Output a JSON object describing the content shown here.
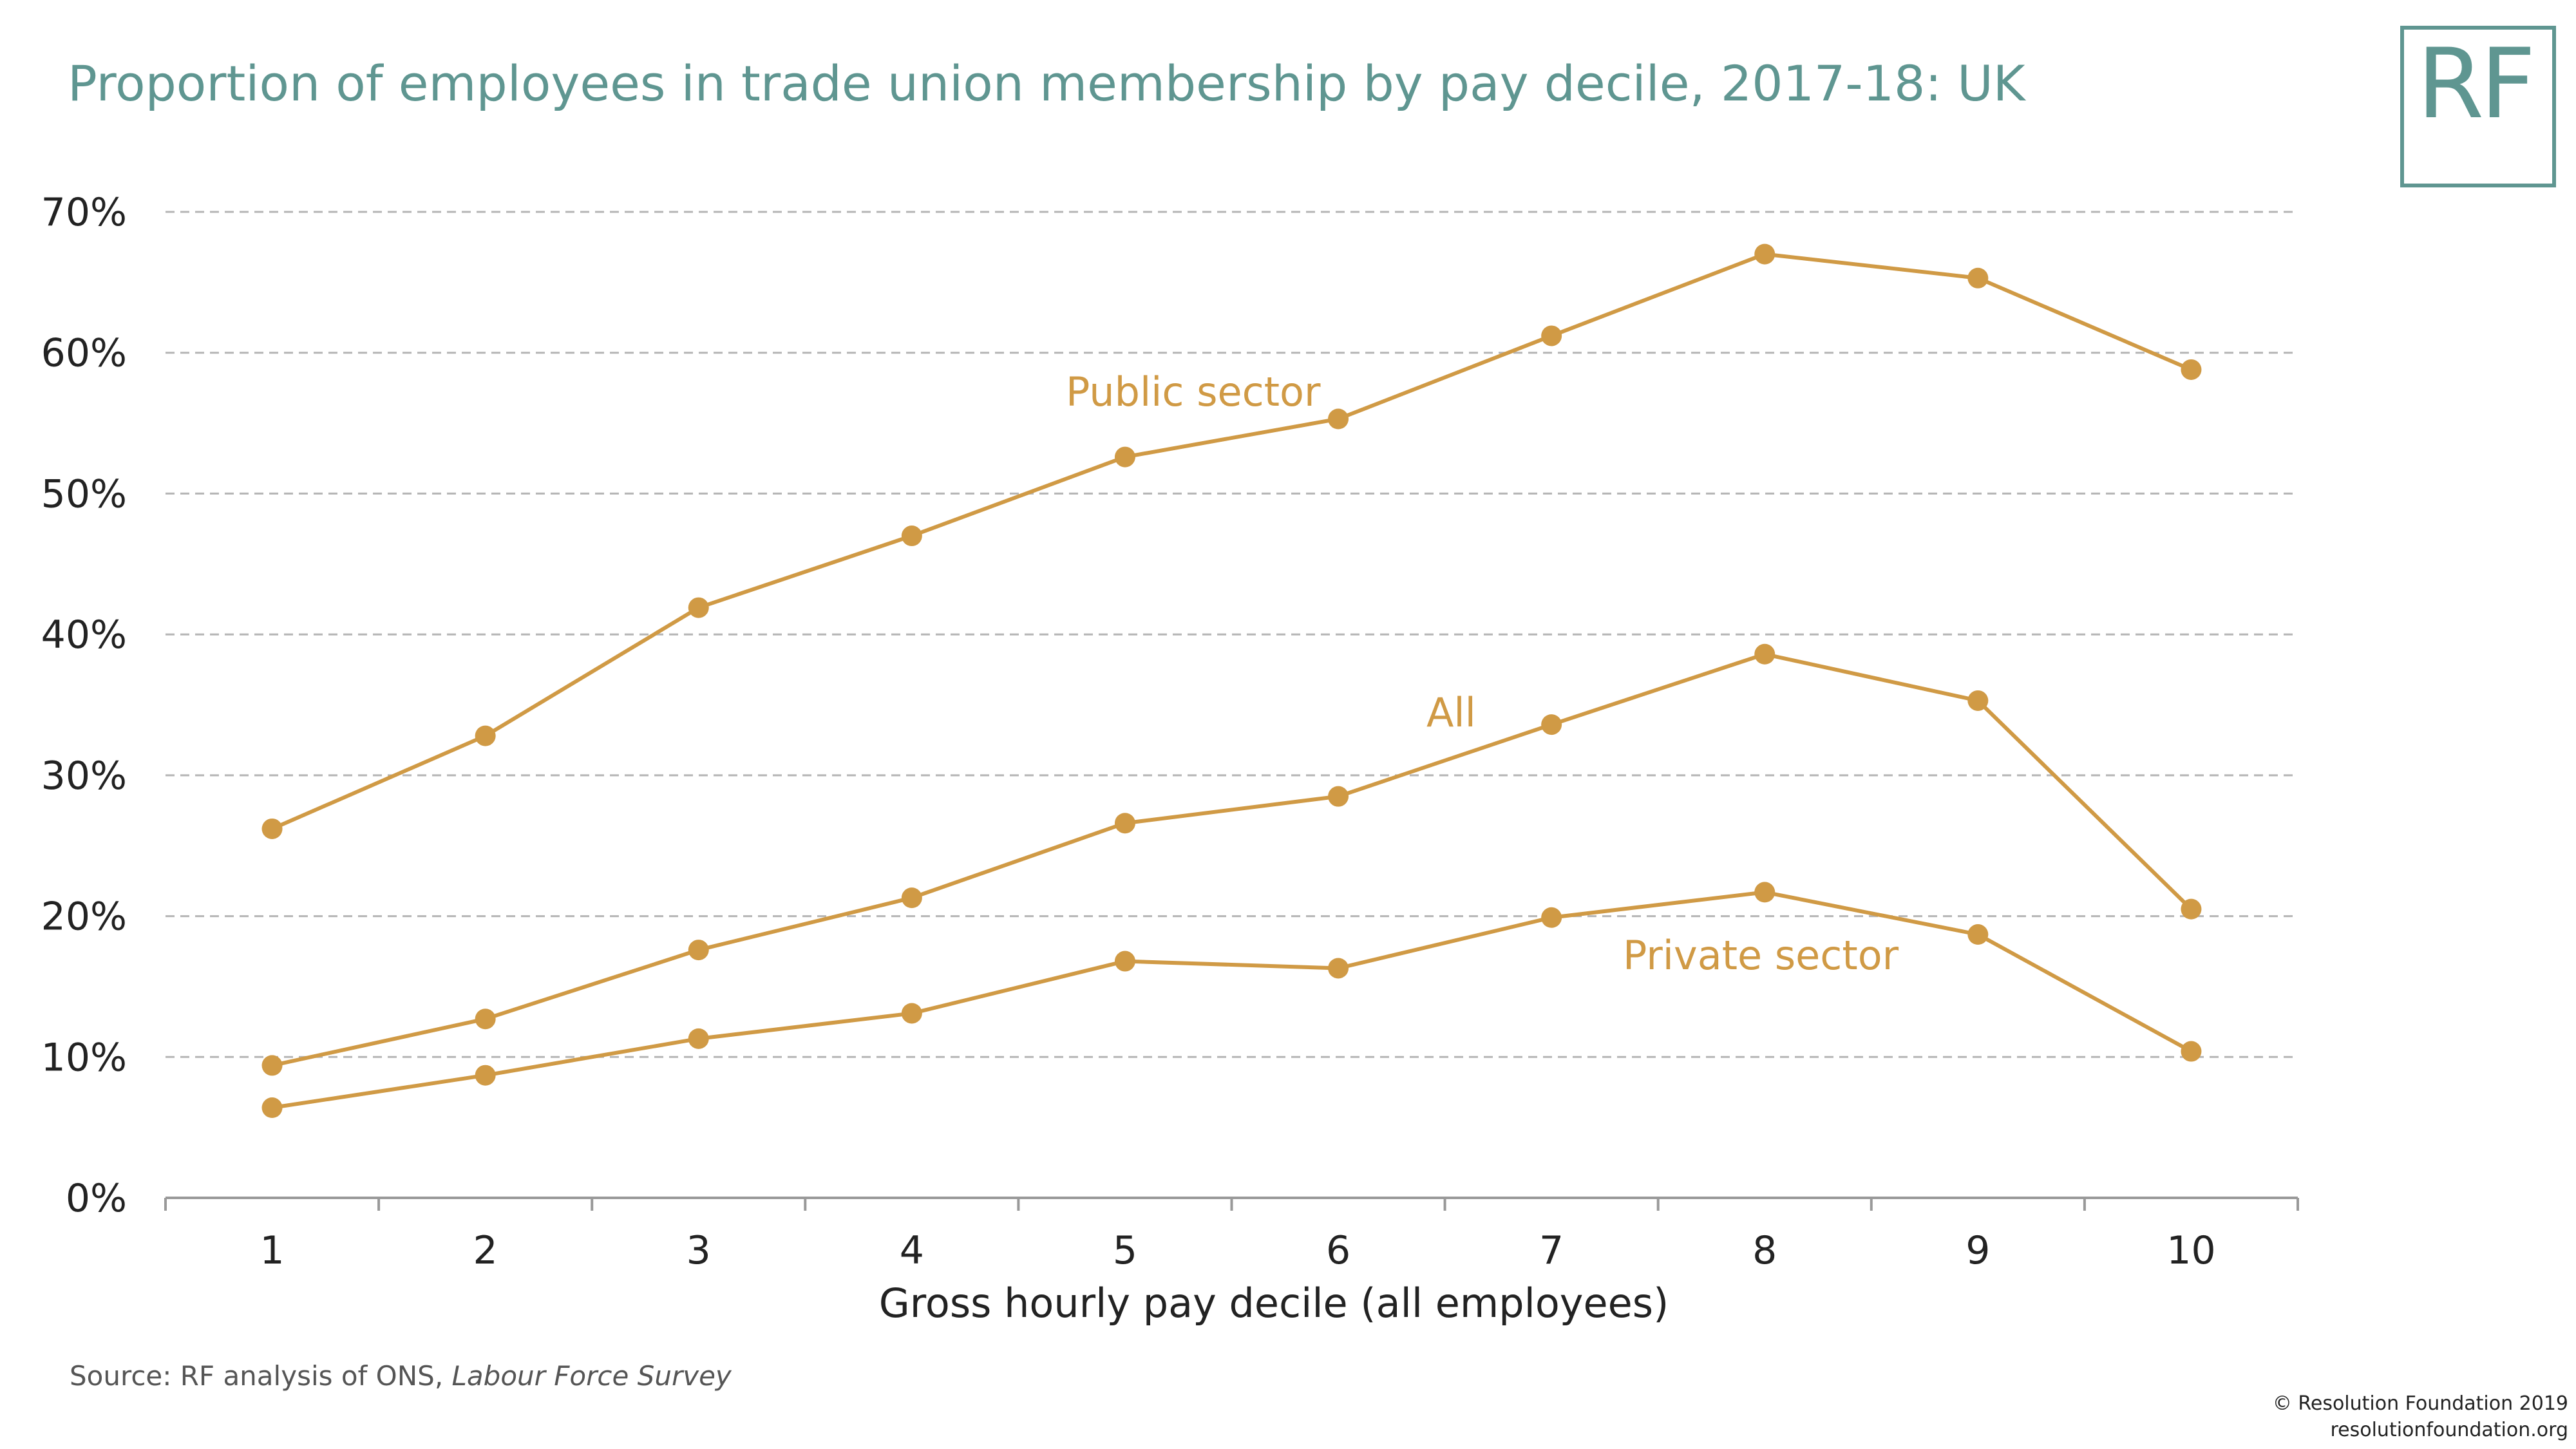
{
  "title": "Proportion of employees in trade union membership by pay decile, 2017-18: UK",
  "logo": {
    "text": "RF"
  },
  "chart_data": {
    "type": "line",
    "x": [
      1,
      2,
      3,
      4,
      5,
      6,
      7,
      8,
      9,
      10
    ],
    "x_tick_labels": [
      "1",
      "2",
      "3",
      "4",
      "5",
      "6",
      "7",
      "8",
      "9",
      "10"
    ],
    "xlabel": "Gross hourly pay decile (all employees)",
    "ylabel": "",
    "ylim": [
      0,
      70
    ],
    "y_ticks": [
      0,
      10,
      20,
      30,
      40,
      50,
      60,
      70
    ],
    "y_tick_labels": [
      "0%",
      "10%",
      "20%",
      "30%",
      "40%",
      "50%",
      "60%",
      "70%"
    ],
    "grid": true,
    "color": "#d09a45",
    "series": [
      {
        "name": "Public sector",
        "values": [
          26.2,
          32.8,
          41.9,
          47.0,
          52.6,
          55.3,
          61.2,
          67.0,
          65.3,
          58.8
        ]
      },
      {
        "name": "All",
        "values": [
          9.4,
          12.7,
          17.6,
          21.3,
          26.6,
          28.5,
          33.6,
          38.6,
          35.3,
          20.5
        ]
      },
      {
        "name": "Private sector",
        "values": [
          6.4,
          8.7,
          11.3,
          13.1,
          16.8,
          16.3,
          19.9,
          21.7,
          18.7,
          10.4
        ]
      }
    ]
  },
  "source": {
    "prefix": "Source: RF analysis of ONS, ",
    "italic": "Labour Force Survey"
  },
  "copyright": {
    "line1": "© Resolution Foundation 2019",
    "line2": "resolutionfoundation.org"
  }
}
